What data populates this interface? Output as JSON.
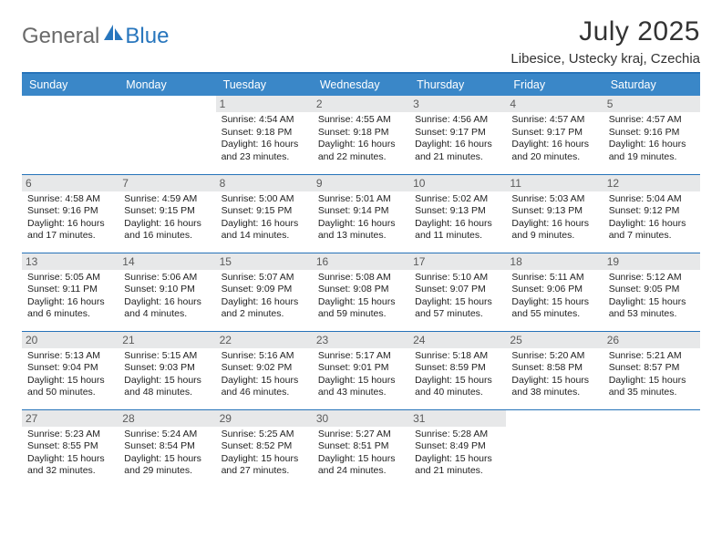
{
  "brand": {
    "part1": "General",
    "part2": "Blue",
    "logo_color": "#2876bd"
  },
  "title": "July 2025",
  "location": "Libesice, Ustecky kraj, Czechia",
  "colors": {
    "header_bg": "#3a87c8",
    "rule": "#2673b9",
    "daynum_bg": "#e7e8e9",
    "text": "#222222",
    "muted": "#6a6a6a"
  },
  "dayNames": [
    "Sunday",
    "Monday",
    "Tuesday",
    "Wednesday",
    "Thursday",
    "Friday",
    "Saturday"
  ],
  "weeks": [
    [
      null,
      null,
      {
        "n": "1",
        "sr": "4:54 AM",
        "ss": "9:18 PM",
        "dl": "16 hours and 23 minutes."
      },
      {
        "n": "2",
        "sr": "4:55 AM",
        "ss": "9:18 PM",
        "dl": "16 hours and 22 minutes."
      },
      {
        "n": "3",
        "sr": "4:56 AM",
        "ss": "9:17 PM",
        "dl": "16 hours and 21 minutes."
      },
      {
        "n": "4",
        "sr": "4:57 AM",
        "ss": "9:17 PM",
        "dl": "16 hours and 20 minutes."
      },
      {
        "n": "5",
        "sr": "4:57 AM",
        "ss": "9:16 PM",
        "dl": "16 hours and 19 minutes."
      }
    ],
    [
      {
        "n": "6",
        "sr": "4:58 AM",
        "ss": "9:16 PM",
        "dl": "16 hours and 17 minutes."
      },
      {
        "n": "7",
        "sr": "4:59 AM",
        "ss": "9:15 PM",
        "dl": "16 hours and 16 minutes."
      },
      {
        "n": "8",
        "sr": "5:00 AM",
        "ss": "9:15 PM",
        "dl": "16 hours and 14 minutes."
      },
      {
        "n": "9",
        "sr": "5:01 AM",
        "ss": "9:14 PM",
        "dl": "16 hours and 13 minutes."
      },
      {
        "n": "10",
        "sr": "5:02 AM",
        "ss": "9:13 PM",
        "dl": "16 hours and 11 minutes."
      },
      {
        "n": "11",
        "sr": "5:03 AM",
        "ss": "9:13 PM",
        "dl": "16 hours and 9 minutes."
      },
      {
        "n": "12",
        "sr": "5:04 AM",
        "ss": "9:12 PM",
        "dl": "16 hours and 7 minutes."
      }
    ],
    [
      {
        "n": "13",
        "sr": "5:05 AM",
        "ss": "9:11 PM",
        "dl": "16 hours and 6 minutes."
      },
      {
        "n": "14",
        "sr": "5:06 AM",
        "ss": "9:10 PM",
        "dl": "16 hours and 4 minutes."
      },
      {
        "n": "15",
        "sr": "5:07 AM",
        "ss": "9:09 PM",
        "dl": "16 hours and 2 minutes."
      },
      {
        "n": "16",
        "sr": "5:08 AM",
        "ss": "9:08 PM",
        "dl": "15 hours and 59 minutes."
      },
      {
        "n": "17",
        "sr": "5:10 AM",
        "ss": "9:07 PM",
        "dl": "15 hours and 57 minutes."
      },
      {
        "n": "18",
        "sr": "5:11 AM",
        "ss": "9:06 PM",
        "dl": "15 hours and 55 minutes."
      },
      {
        "n": "19",
        "sr": "5:12 AM",
        "ss": "9:05 PM",
        "dl": "15 hours and 53 minutes."
      }
    ],
    [
      {
        "n": "20",
        "sr": "5:13 AM",
        "ss": "9:04 PM",
        "dl": "15 hours and 50 minutes."
      },
      {
        "n": "21",
        "sr": "5:15 AM",
        "ss": "9:03 PM",
        "dl": "15 hours and 48 minutes."
      },
      {
        "n": "22",
        "sr": "5:16 AM",
        "ss": "9:02 PM",
        "dl": "15 hours and 46 minutes."
      },
      {
        "n": "23",
        "sr": "5:17 AM",
        "ss": "9:01 PM",
        "dl": "15 hours and 43 minutes."
      },
      {
        "n": "24",
        "sr": "5:18 AM",
        "ss": "8:59 PM",
        "dl": "15 hours and 40 minutes."
      },
      {
        "n": "25",
        "sr": "5:20 AM",
        "ss": "8:58 PM",
        "dl": "15 hours and 38 minutes."
      },
      {
        "n": "26",
        "sr": "5:21 AM",
        "ss": "8:57 PM",
        "dl": "15 hours and 35 minutes."
      }
    ],
    [
      {
        "n": "27",
        "sr": "5:23 AM",
        "ss": "8:55 PM",
        "dl": "15 hours and 32 minutes."
      },
      {
        "n": "28",
        "sr": "5:24 AM",
        "ss": "8:54 PM",
        "dl": "15 hours and 29 minutes."
      },
      {
        "n": "29",
        "sr": "5:25 AM",
        "ss": "8:52 PM",
        "dl": "15 hours and 27 minutes."
      },
      {
        "n": "30",
        "sr": "5:27 AM",
        "ss": "8:51 PM",
        "dl": "15 hours and 24 minutes."
      },
      {
        "n": "31",
        "sr": "5:28 AM",
        "ss": "8:49 PM",
        "dl": "15 hours and 21 minutes."
      },
      null,
      null
    ]
  ],
  "labels": {
    "sunrise": "Sunrise:",
    "sunset": "Sunset:",
    "daylight": "Daylight:"
  }
}
